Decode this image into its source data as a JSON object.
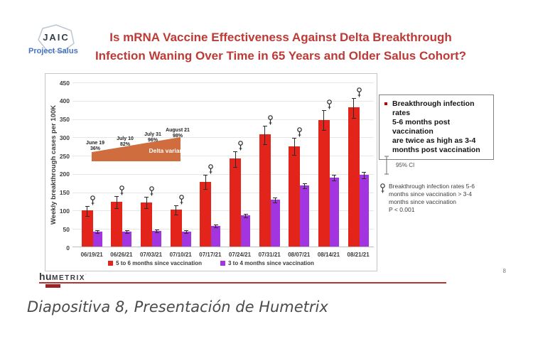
{
  "header": {
    "logo_text": "JAIC",
    "logo_subtitle": "Project Salus",
    "title_line1": "Is mRNA Vaccine Effectiveness Against Delta Breakthrough",
    "title_line2": "Infection Waning Over Time in 65 Years and Older Salus Cohort?",
    "title_color": "#bd3a36"
  },
  "chart_data": {
    "type": "bar",
    "title": "",
    "xlabel": "",
    "ylabel": "Weekly breakthrough cases per 100K",
    "ylim": [
      0,
      450
    ],
    "ytick_step": 50,
    "grid": true,
    "legend_position": "bottom",
    "categories": [
      "06/19/21",
      "06/26/21",
      "07/03/21",
      "07/10/21",
      "07/17/21",
      "07/24/21",
      "07/31/21",
      "08/07/21",
      "08/14/21",
      "08/21/21"
    ],
    "series": [
      {
        "name": "5 to 6 months since vaccination",
        "color": "#e3241b",
        "values": [
          98,
          122,
          121,
          101,
          177,
          240,
          306,
          274,
          346,
          380
        ],
        "ci_95": [
          15,
          17,
          16,
          14,
          20,
          22,
          26,
          24,
          28,
          28
        ],
        "significance_marker": true
      },
      {
        "name": "3 to 4 months since vaccination",
        "color": "#a335e0",
        "values": [
          41,
          41,
          43,
          41,
          57,
          86,
          128,
          167,
          189,
          196
        ],
        "ci_95": [
          5,
          5,
          5,
          5,
          5,
          6,
          8,
          8,
          9,
          10
        ],
        "significance_marker": false
      }
    ],
    "annotation": {
      "label": "Delta variant",
      "color": "#cf6d3e",
      "points": [
        {
          "date": "June 19",
          "pct": "36%"
        },
        {
          "date": "July 10",
          "pct": "82%"
        },
        {
          "date": "July 31",
          "pct": "96%"
        },
        {
          "date": "August 21",
          "pct": "98%"
        }
      ]
    }
  },
  "right_panel": {
    "callout": "Breakthrough infection rates\n5-6 months post vaccination\nare twice as high as 3-4\nmonths post vaccination",
    "bullet_color": "#c00000",
    "ci_label": "95% CI",
    "significance_note": "Breakthrough infection rates 5-6\nmonths since vaccination > 3-4\nmonths since vaccination\nP < 0.001"
  },
  "footer": {
    "logo_part1": "hu",
    "logo_part2": "METRIX",
    "logo_mark": "·",
    "page_number": "8"
  },
  "caption": "Diapositiva 8, Presentación de Humetrix"
}
